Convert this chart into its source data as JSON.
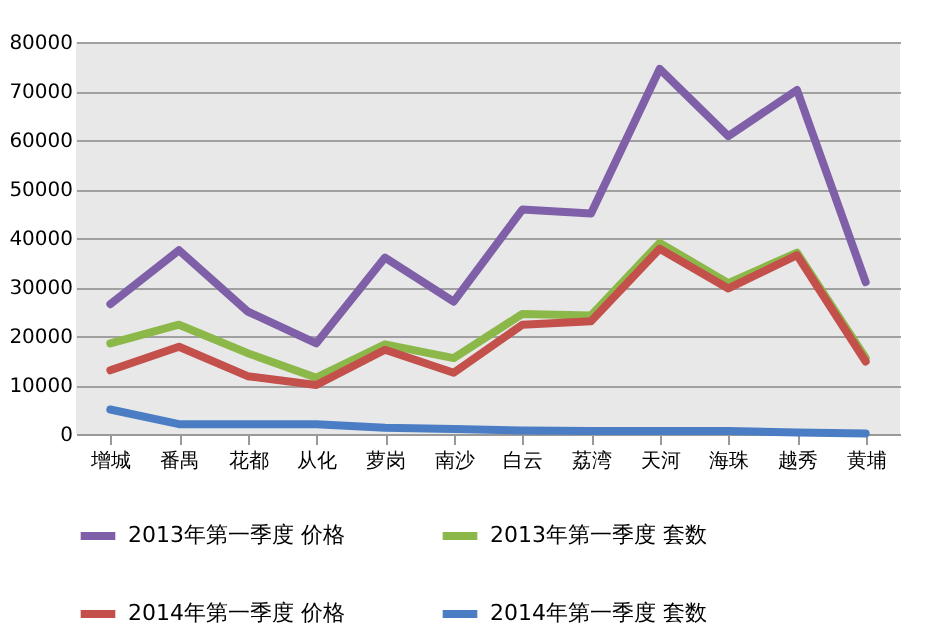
{
  "chart_data": {
    "type": "line",
    "categories": [
      "增城",
      "番禺",
      "花都",
      "从化",
      "萝岗",
      "南沙",
      "白云",
      "荔湾",
      "天河",
      "海珠",
      "越秀",
      "黄埔"
    ],
    "series": [
      {
        "name": "2013年第一季度 价格",
        "color": "#7f60a8",
        "values": [
          26500,
          37500,
          25000,
          18500,
          36000,
          27000,
          45800,
          45000,
          74500,
          60800,
          70200,
          31000
        ]
      },
      {
        "name": "2013年第一季度 套数",
        "color": "#8cb84a",
        "values": [
          18500,
          22300,
          16500,
          11500,
          18300,
          15500,
          24500,
          24200,
          39000,
          30800,
          37000,
          15500
        ]
      },
      {
        "name": "2014年第一季度 价格",
        "color": "#c4504c",
        "values": [
          13000,
          17800,
          11800,
          10000,
          17200,
          12500,
          22300,
          23000,
          37800,
          29700,
          36500,
          14800
        ]
      },
      {
        "name": "2014年第一季度 套数",
        "color": "#4a7dc4",
        "values": [
          5000,
          2000,
          2000,
          2000,
          1300,
          1000,
          700,
          600,
          600,
          600,
          300,
          100
        ]
      }
    ],
    "ylim": [
      0,
      80000
    ],
    "yticks": [
      0,
      10000,
      20000,
      30000,
      40000,
      50000,
      60000,
      70000,
      80000
    ],
    "grid": "y",
    "legend": "bottom",
    "marker": "none",
    "line_style": "solid"
  }
}
